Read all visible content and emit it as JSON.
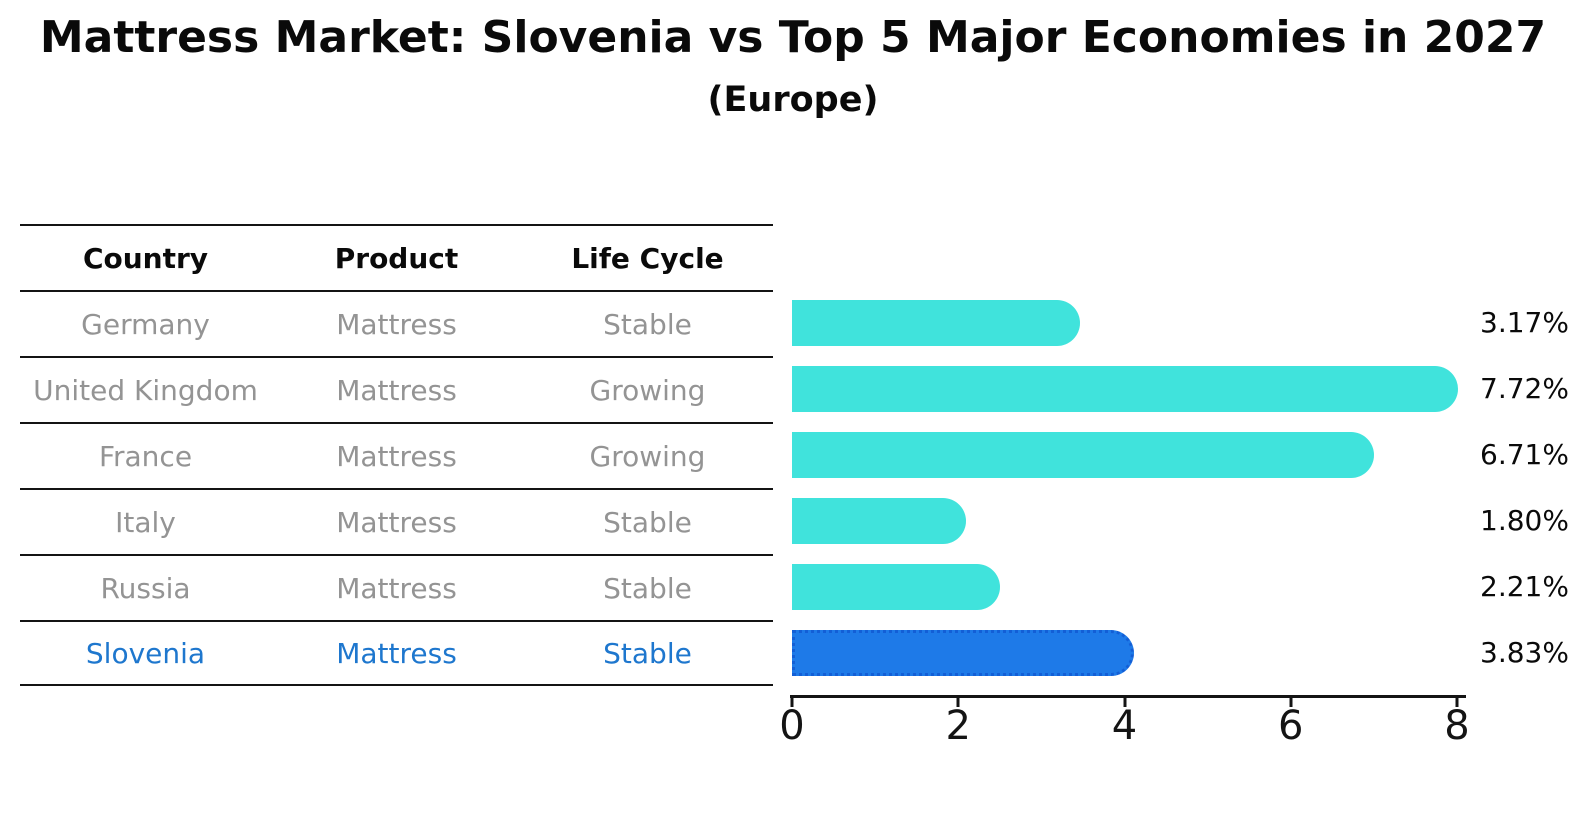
{
  "title": "Mattress Market: Slovenia vs Top 5 Major Economies in 2027",
  "subtitle": "(Europe)",
  "table": {
    "headers": [
      "Country",
      "Product",
      "Life Cycle"
    ],
    "rows": [
      {
        "country": "Germany",
        "product": "Mattress",
        "life_cycle": "Stable"
      },
      {
        "country": "United Kingdom",
        "product": "Mattress",
        "life_cycle": "Growing"
      },
      {
        "country": "France",
        "product": "Mattress",
        "life_cycle": "Growing"
      },
      {
        "country": "Italy",
        "product": "Mattress",
        "life_cycle": "Stable"
      },
      {
        "country": "Russia",
        "product": "Mattress",
        "life_cycle": "Stable"
      },
      {
        "country": "Slovenia",
        "product": "Mattress",
        "life_cycle": "Stable"
      }
    ],
    "highlight_row": "Slovenia"
  },
  "chart_data": {
    "type": "bar",
    "orientation": "horizontal",
    "title": "Mattress Market: Slovenia vs Top 5 Major Economies in 2027",
    "subtitle": "(Europe)",
    "categories": [
      "Germany",
      "United Kingdom",
      "France",
      "Italy",
      "Russia",
      "Slovenia"
    ],
    "values": [
      3.17,
      7.72,
      6.71,
      1.8,
      2.21,
      3.83
    ],
    "value_labels": [
      "3.17%",
      "7.72%",
      "6.71%",
      "1.80%",
      "2.21%",
      "3.83%"
    ],
    "xlim": [
      0,
      8
    ],
    "xticks": [
      "0",
      "2",
      "4",
      "6",
      "8"
    ],
    "grid": false,
    "legend": false,
    "highlight_index": 5
  },
  "colors": {
    "bar": "#40E3DC",
    "highlight_bar": "#1E7AE8",
    "highlight_bar_border": "#135FD6",
    "highlight_text": "#1E77CE",
    "row_text": "#949494",
    "header_text": "#0a0a0a",
    "axis": "#141414"
  }
}
